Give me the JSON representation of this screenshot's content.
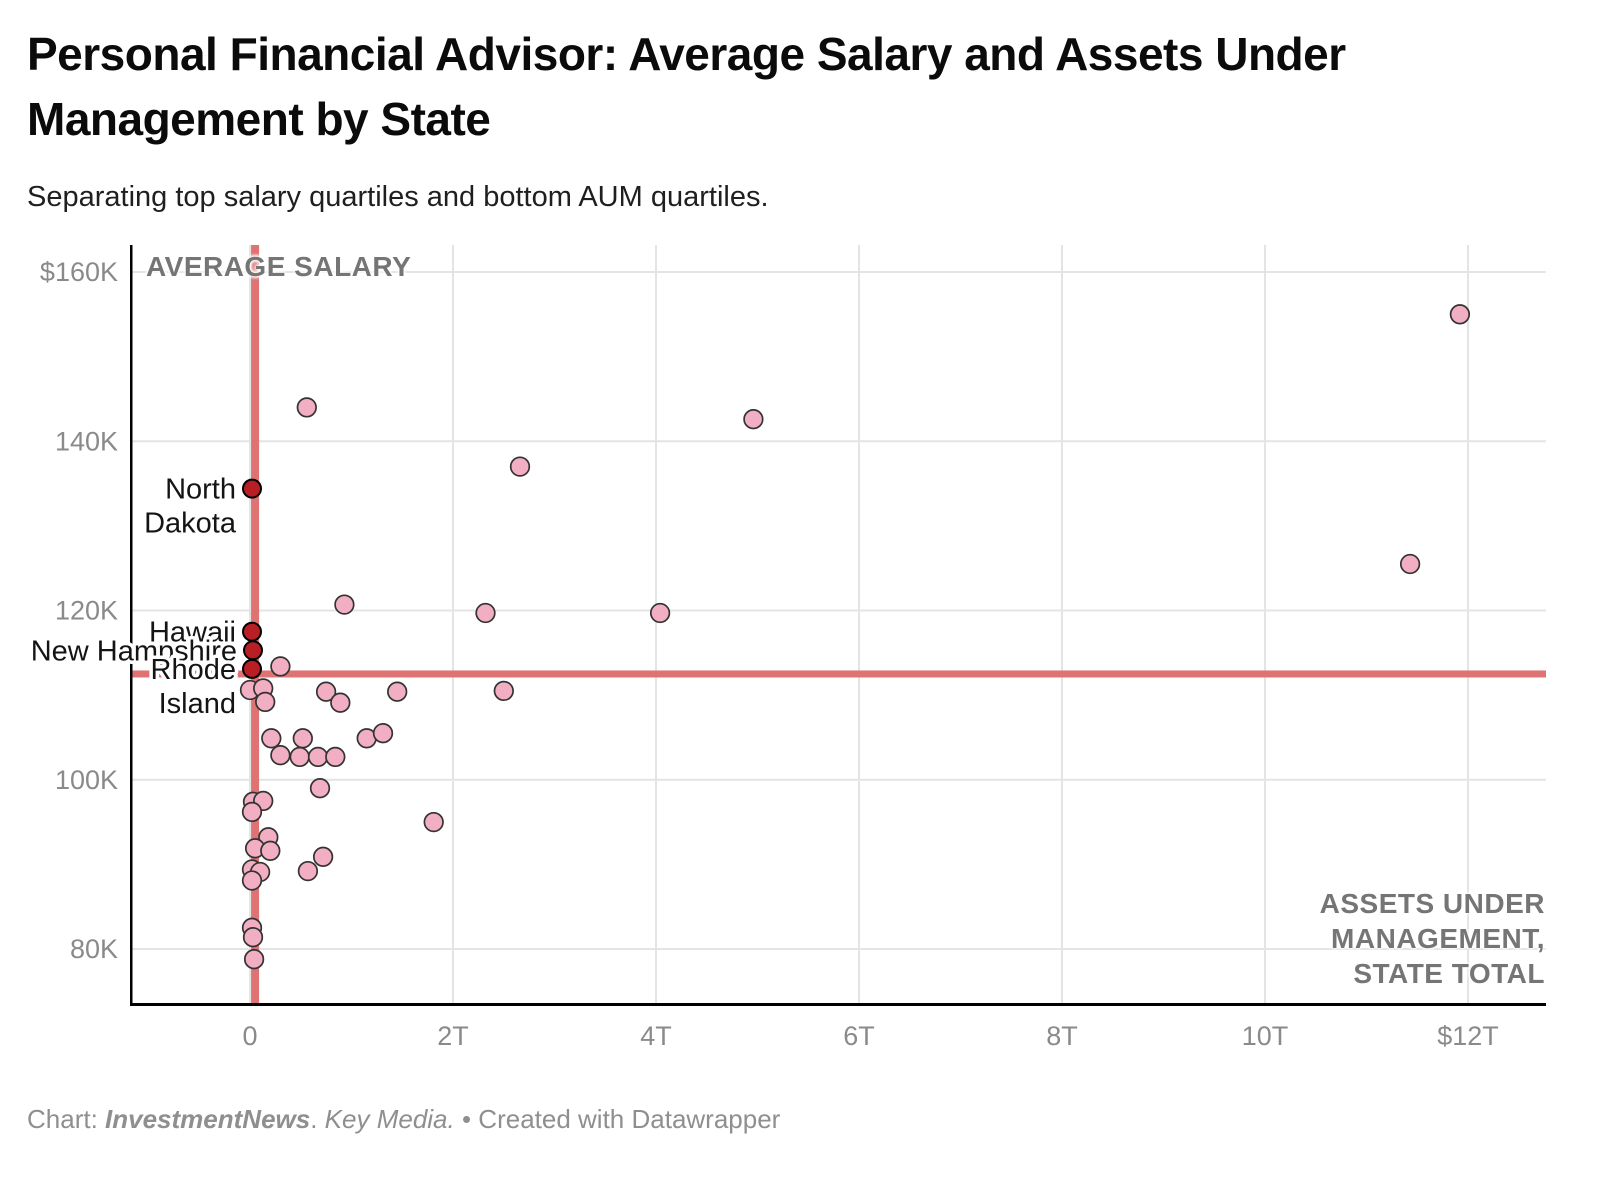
{
  "header": {
    "title": "Personal Financial Advisor: Average Salary and Assets Under Management by State",
    "subtitle": "Separating top salary quartiles and bottom AUM quartiles."
  },
  "footer": {
    "prefix": "Chart: ",
    "source": "InvestmentNews",
    "separator": ". ",
    "byline": "Key Media.",
    "suffix": " • Created with Datawrapper"
  },
  "colors": {
    "point_fill": "#f2aec3",
    "point_stroke": "#333333",
    "highlight_fill": "#b71f24",
    "highlight_stroke": "#000000",
    "crosshair": "#df7273",
    "gridline": "#e4e4e4",
    "axis_line": "#000000",
    "tick_text": "#8a8a8a"
  },
  "chart_data": {
    "type": "scatter",
    "x_axis": {
      "title": "ASSETS UNDER MANAGEMENT, STATE TOTAL",
      "unit": "trillion USD",
      "min": -1.2,
      "max": 12.8,
      "grid": true,
      "ticks": [
        {
          "v": 0,
          "label": "0"
        },
        {
          "v": 2,
          "label": "2T"
        },
        {
          "v": 4,
          "label": "4T"
        },
        {
          "v": 6,
          "label": "6T"
        },
        {
          "v": 8,
          "label": "8T"
        },
        {
          "v": 10,
          "label": "10T"
        },
        {
          "v": 12,
          "label": "$12T"
        }
      ]
    },
    "y_axis": {
      "title": "AVERAGE SALARY",
      "unit": "thousand USD",
      "min": 73,
      "max": 163,
      "grid": true,
      "ticks": [
        {
          "v": 160,
          "label": "$160K"
        },
        {
          "v": 140,
          "label": "140K"
        },
        {
          "v": 120,
          "label": "120K"
        },
        {
          "v": 100,
          "label": "100K"
        },
        {
          "v": 80,
          "label": "80K"
        }
      ]
    },
    "quadrant_lines": {
      "x_value_t": 0.05,
      "y_value_k": 112.5
    },
    "series": [
      {
        "name": "states",
        "points": [
          [
            11.92,
            155.0
          ],
          [
            11.43,
            125.5
          ],
          [
            4.96,
            142.6
          ],
          [
            2.66,
            137.0
          ],
          [
            0.56,
            144.0
          ],
          [
            0.93,
            120.7
          ],
          [
            2.32,
            119.7
          ],
          [
            4.04,
            119.7
          ],
          [
            0.3,
            113.4
          ],
          [
            0.0,
            110.6
          ],
          [
            0.13,
            110.8
          ],
          [
            0.15,
            109.2
          ],
          [
            0.75,
            110.4
          ],
          [
            0.89,
            109.1
          ],
          [
            1.45,
            110.4
          ],
          [
            2.5,
            110.5
          ],
          [
            0.21,
            104.9
          ],
          [
            0.3,
            102.9
          ],
          [
            0.52,
            104.9
          ],
          [
            0.49,
            102.7
          ],
          [
            0.67,
            102.7
          ],
          [
            0.84,
            102.7
          ],
          [
            1.15,
            104.9
          ],
          [
            1.31,
            105.5
          ],
          [
            0.69,
            99.0
          ],
          [
            1.81,
            95.0
          ],
          [
            0.03,
            97.4
          ],
          [
            0.13,
            97.5
          ],
          [
            0.02,
            96.2
          ],
          [
            0.18,
            93.2
          ],
          [
            0.05,
            91.9
          ],
          [
            0.2,
            91.6
          ],
          [
            0.02,
            89.4
          ],
          [
            0.1,
            89.1
          ],
          [
            0.02,
            88.1
          ],
          [
            0.57,
            89.2
          ],
          [
            0.72,
            90.9
          ],
          [
            0.02,
            82.5
          ],
          [
            0.03,
            81.4
          ],
          [
            0.04,
            78.8
          ]
        ]
      },
      {
        "name": "top-salary-bottom-aum",
        "points": [
          {
            "label": "North Dakota",
            "label_lines": [
              "North",
              "Dakota"
            ],
            "x": 0.02,
            "y": 134.4
          },
          {
            "label": "Hawaii",
            "label_lines": [
              "Hawaii"
            ],
            "x": 0.02,
            "y": 117.5
          },
          {
            "label": "New Hampshire",
            "label_lines": [
              "New Hampshire"
            ],
            "x": 0.03,
            "y": 115.3
          },
          {
            "label": "Rhode Island",
            "label_lines": [
              "Rhode",
              "Island"
            ],
            "x": 0.02,
            "y": 113.1
          }
        ]
      }
    ]
  }
}
